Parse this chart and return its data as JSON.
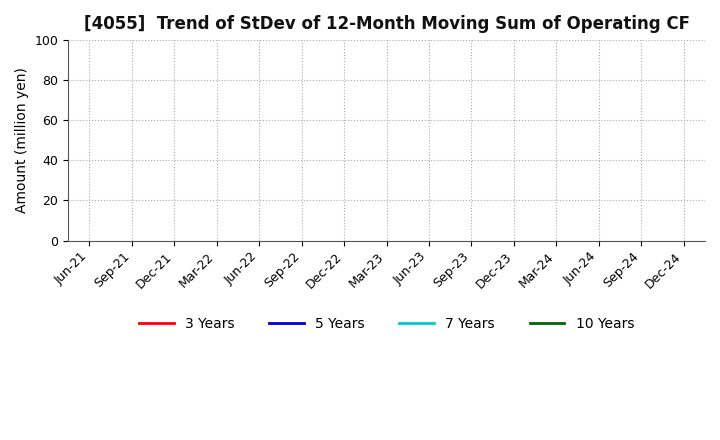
{
  "title": "[4055]  Trend of StDev of 12-Month Moving Sum of Operating CF",
  "ylabel": "Amount (million yen)",
  "ylim": [
    0,
    100
  ],
  "yticks": [
    0,
    20,
    40,
    60,
    80,
    100
  ],
  "background_color": "#ffffff",
  "grid_color": "#aaaaaa",
  "title_fontsize": 12,
  "axis_fontsize": 10,
  "tick_fontsize": 9,
  "x_tick_labels": [
    "Jun-21",
    "Sep-21",
    "Dec-21",
    "Mar-22",
    "Jun-22",
    "Sep-22",
    "Dec-22",
    "Mar-23",
    "Jun-23",
    "Sep-23",
    "Dec-23",
    "Mar-24",
    "Jun-24",
    "Sep-24",
    "Dec-24"
  ],
  "legend_entries": [
    {
      "label": "3 Years",
      "color": "#ff0000"
    },
    {
      "label": "5 Years",
      "color": "#0000cc"
    },
    {
      "label": "7 Years",
      "color": "#00cccc"
    },
    {
      "label": "10 Years",
      "color": "#006600"
    }
  ]
}
